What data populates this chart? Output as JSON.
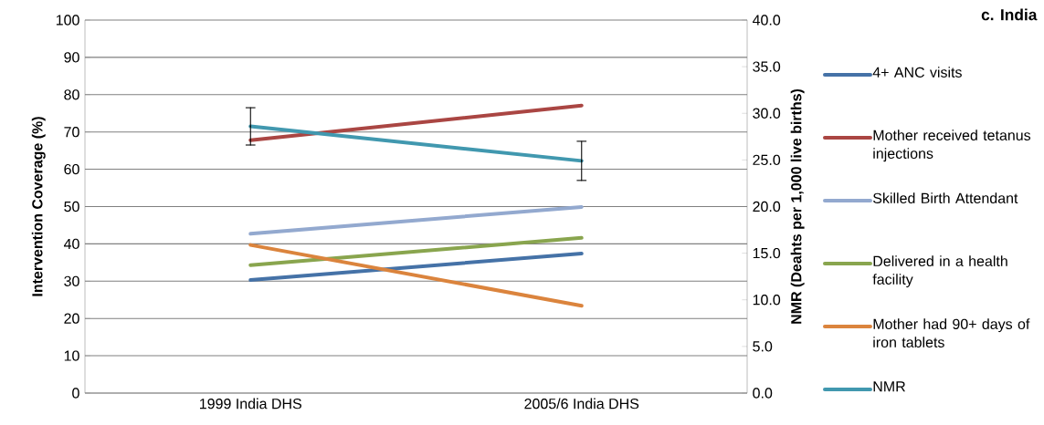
{
  "chart_data": {
    "type": "line",
    "title": "c. India",
    "ylabel": "Intervention Coverage (%)",
    "y2label": "NMR (Deahts per 1,000 live births)",
    "categories": [
      "1999 India DHS",
      "2005/6 India DHS"
    ],
    "ylim": [
      0,
      100
    ],
    "yticks": [
      0,
      10,
      20,
      30,
      40,
      50,
      60,
      70,
      80,
      90,
      100
    ],
    "y2lim": [
      0,
      40
    ],
    "y2ticks": [
      {
        "value": 0,
        "label": "0.0"
      },
      {
        "value": 5,
        "label": "5.0"
      },
      {
        "value": 10,
        "label": "10.0"
      },
      {
        "value": 15,
        "label": "15.0"
      },
      {
        "value": 20,
        "label": "20.0"
      },
      {
        "value": 25,
        "label": "25.0"
      },
      {
        "value": 30,
        "label": "30.0"
      },
      {
        "value": 35,
        "label": "35.0"
      },
      {
        "value": 40,
        "label": "40.0"
      }
    ],
    "grid": "y",
    "legend": "right",
    "marker": "none",
    "line_style": "solid",
    "series": [
      {
        "name": "4+ ANC visits",
        "color": "#4572a7",
        "values": [
          30.3,
          37.4
        ]
      },
      {
        "name": "Mother received tetanus injections",
        "color": "#aa4643",
        "values": [
          67.8,
          77.1
        ]
      },
      {
        "name": "Skilled Birth Attendant",
        "color": "#93a9cf",
        "values": [
          42.7,
          49.9
        ]
      },
      {
        "name": "Delivered in a health facility",
        "color": "#89a54e",
        "values": [
          34.3,
          41.6
        ]
      },
      {
        "name": "Mother had 90+ days of iron tablets",
        "color": "#db843d",
        "values": [
          39.7,
          23.4
        ]
      },
      {
        "name": "NMR",
        "color": "#4198af",
        "axis": "y2",
        "values": [
          28.6,
          24.9
        ],
        "errors": [
          2.0,
          2.1
        ]
      }
    ]
  }
}
